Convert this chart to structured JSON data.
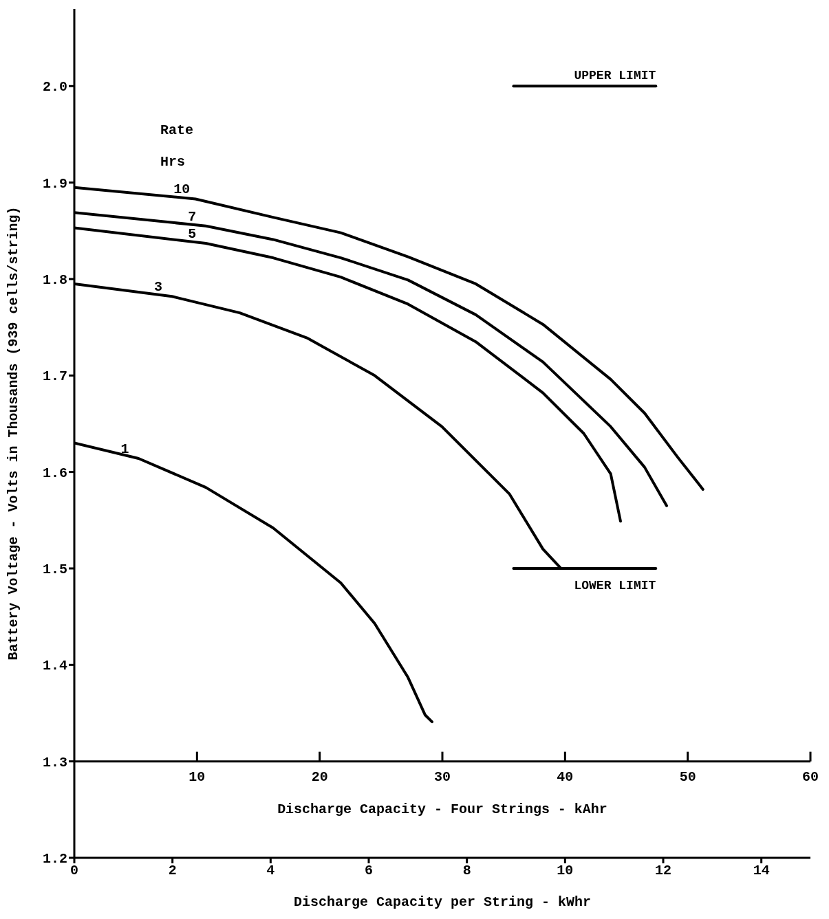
{
  "chart_data": {
    "type": "line",
    "xlabel": "Discharge Capacity per String - kWhr",
    "ylabel": "Battery Voltage - Volts in Thousands (939 cells/string)",
    "x2label": "Discharge Capacity - Four Strings - kAhr",
    "legend_title": "Rate Hrs",
    "xlim": [
      0,
      15
    ],
    "xticks": [
      0,
      2,
      4,
      6,
      8,
      10,
      12,
      14
    ],
    "x2lim": [
      0,
      60
    ],
    "x2ticks": [
      10,
      20,
      30,
      40,
      50,
      60
    ],
    "ylim": [
      1.2,
      2.08
    ],
    "yticks": [
      1.2,
      1.3,
      1.4,
      1.5,
      1.6,
      1.7,
      1.8,
      1.9,
      {
        "value": 2,
        "label": "2.0"
      }
    ],
    "marker": "none",
    "line_style": "solid",
    "series": [
      {
        "name": "10",
        "color": "#000000",
        "x": [
          0,
          2.47,
          4.05,
          5.43,
          6.8,
          8.18,
          9.55,
          10.93,
          11.62,
          12.3,
          12.81
        ],
        "values": [
          1.895,
          1.883,
          1.864,
          1.848,
          1.823,
          1.795,
          1.753,
          1.696,
          1.661,
          1.615,
          1.582
        ]
      },
      {
        "name": "7",
        "color": "#000000",
        "x": [
          0,
          2.68,
          4.05,
          5.43,
          6.8,
          8.18,
          9.55,
          10.93,
          11.62,
          12.07
        ],
        "values": [
          1.869,
          1.855,
          1.841,
          1.822,
          1.799,
          1.763,
          1.714,
          1.647,
          1.605,
          1.565
        ]
      },
      {
        "name": "5",
        "color": "#000000",
        "x": [
          0,
          2.68,
          4.05,
          5.43,
          6.8,
          8.18,
          9.55,
          10.38,
          10.93,
          11.13
        ],
        "values": [
          1.853,
          1.837,
          1.822,
          1.802,
          1.774,
          1.735,
          1.682,
          1.64,
          1.598,
          1.549
        ]
      },
      {
        "name": "3",
        "color": "#000000",
        "x": [
          0,
          1.99,
          3.37,
          4.74,
          6.12,
          7.49,
          8.87,
          9.55,
          9.9
        ],
        "values": [
          1.795,
          1.782,
          1.765,
          1.739,
          1.7,
          1.647,
          1.577,
          1.52,
          1.501
        ]
      },
      {
        "name": "1",
        "color": "#000000",
        "x": [
          0,
          1.31,
          2.68,
          4.05,
          5.43,
          6.12,
          6.8,
          7.15,
          7.29
        ],
        "values": [
          1.63,
          1.614,
          1.584,
          1.542,
          1.485,
          1.443,
          1.387,
          1.348,
          1.341
        ]
      },
      {
        "name": "UPPER LIMIT",
        "color": "#000000",
        "x": [
          8.95,
          11.85
        ],
        "values": [
          2.0,
          2.0
        ]
      },
      {
        "name": "LOWER LIMIT",
        "color": "#000000",
        "x": [
          8.95,
          11.85
        ],
        "values": [
          1.5,
          1.5
        ]
      }
    ]
  }
}
